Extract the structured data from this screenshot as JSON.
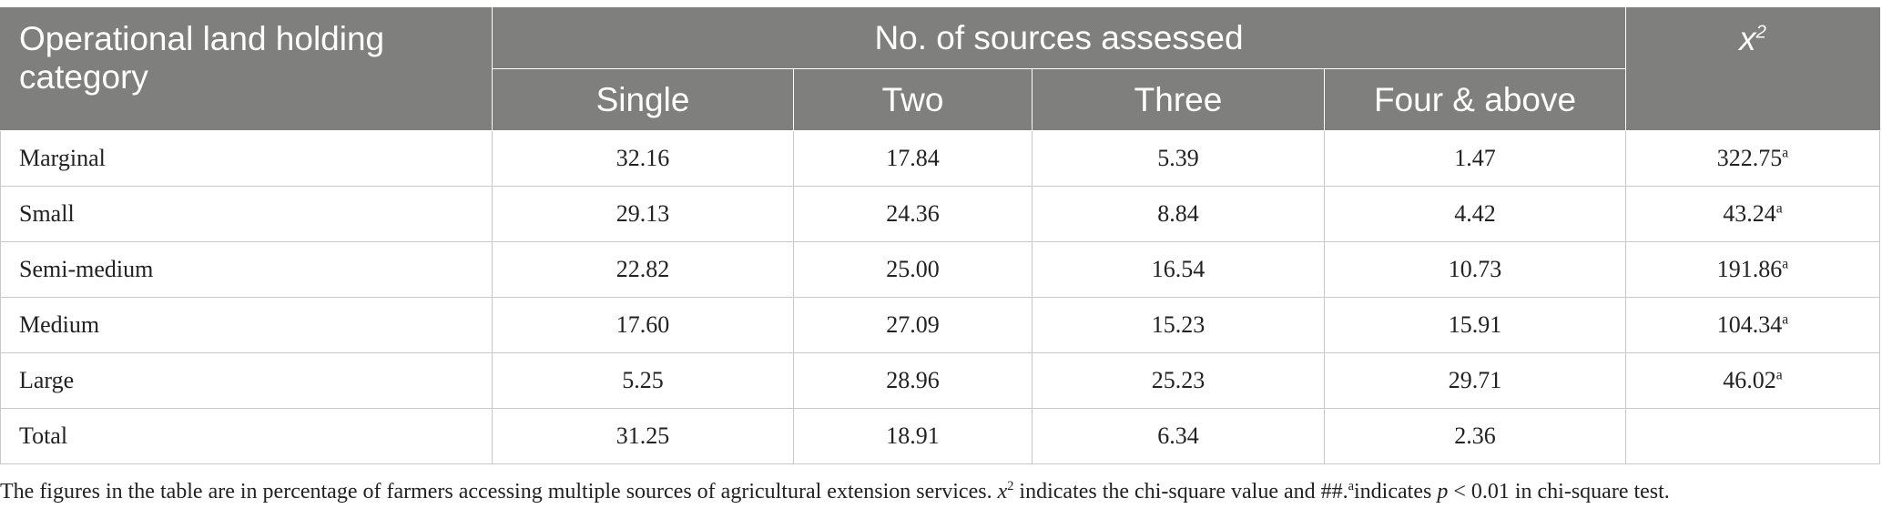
{
  "table": {
    "header": {
      "stub": "Operational land holding category",
      "group": "No. of sources assessed",
      "chi_symbol": "x",
      "chi_exponent": "2",
      "subcolumns": [
        "Single",
        "Two",
        "Three",
        "Four & above"
      ]
    },
    "superscript": "a",
    "rows": [
      {
        "label": "Marginal",
        "values": [
          "32.16",
          "17.84",
          "5.39",
          "1.47"
        ],
        "chi": "322.75",
        "sig": "a"
      },
      {
        "label": "Small",
        "values": [
          "29.13",
          "24.36",
          "8.84",
          "4.42"
        ],
        "chi": "43.24",
        "sig": "a"
      },
      {
        "label": "Semi-medium",
        "values": [
          "22.82",
          "25.00",
          "16.54",
          "10.73"
        ],
        "chi": "191.86",
        "sig": "a"
      },
      {
        "label": "Medium",
        "values": [
          "17.60",
          "27.09",
          "15.23",
          "15.91"
        ],
        "chi": "104.34",
        "sig": "a"
      },
      {
        "label": "Large",
        "values": [
          "5.25",
          "28.96",
          "25.23",
          "29.71"
        ],
        "chi": "46.02",
        "sig": "a"
      },
      {
        "label": "Total",
        "values": [
          "31.25",
          "18.91",
          "6.34",
          "2.36"
        ],
        "chi": "",
        "sig": ""
      }
    ],
    "colors": {
      "header_bg": "#7f7f7d",
      "header_text": "#ffffff",
      "grid": "#c8c8c8"
    }
  },
  "footnote": {
    "part1": "The figures in the table are in percentage of farmers accessing multiple sources of agricultural extension services.",
    "chi_symbol": "x",
    "chi_exponent": "2",
    "part2": "indicates the chi-square value and ##.",
    "sup": "a",
    "part3": "indicates",
    "p_symbol": "p",
    "part4": "< 0.01 in chi-square test."
  }
}
